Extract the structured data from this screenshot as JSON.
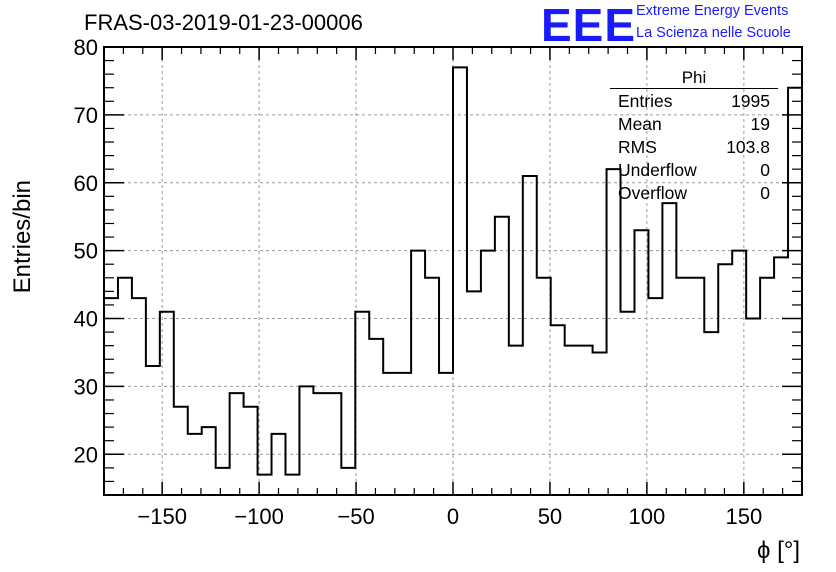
{
  "header": {
    "title": "FRAS-03-2019-01-23-00006",
    "logo_text": "EEE",
    "brand_line1": "Extreme Energy Events",
    "brand_line2": "La Scienza nelle Scuole"
  },
  "colors": {
    "brand": "#1a1aff",
    "line": "#000000",
    "grid": "#9a9a9a"
  },
  "stats": {
    "title": "Phi",
    "rows": [
      {
        "key": "Entries",
        "value": "1995"
      },
      {
        "key": "Mean",
        "value": "19"
      },
      {
        "key": "RMS",
        "value": "103.8"
      },
      {
        "key": "Underflow",
        "value": "0"
      },
      {
        "key": "Overflow",
        "value": "0"
      }
    ]
  },
  "chart_data": {
    "type": "histogram",
    "title": "FRAS-03-2019-01-23-00006",
    "xlabel": "ϕ [°]",
    "ylabel": "Entries/bin",
    "xlim": [
      -180,
      180
    ],
    "ylim": [
      14,
      80
    ],
    "bin_width": 7.2,
    "xticks": [
      -150,
      -100,
      -50,
      0,
      50,
      100,
      150
    ],
    "xtick_labels": [
      "−150",
      "−100",
      "−50",
      "0",
      "50",
      "100",
      "150"
    ],
    "yticks": [
      20,
      30,
      40,
      50,
      60,
      70,
      80
    ],
    "ytick_labels": [
      "20",
      "30",
      "40",
      "50",
      "60",
      "70",
      "80"
    ],
    "grid": true,
    "bin_counts": [
      43,
      46,
      43,
      33,
      41,
      27,
      23,
      24,
      18,
      29,
      27,
      17,
      23,
      17,
      30,
      29,
      29,
      18,
      41,
      37,
      32,
      32,
      50,
      46,
      32,
      77,
      44,
      50,
      55,
      36,
      61,
      46,
      39,
      36,
      36,
      35,
      62,
      41,
      53,
      43,
      57,
      46,
      46,
      38,
      48,
      50,
      40,
      46,
      49,
      74
    ]
  }
}
